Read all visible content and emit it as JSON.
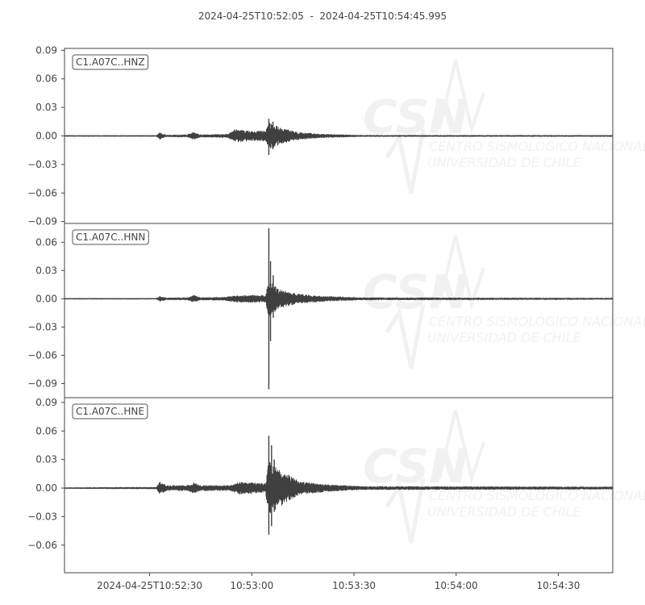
{
  "title": "2024-04-25T10:52:05  -  2024-04-25T10:54:45.995",
  "watermark": {
    "logo": "CSN",
    "line1": "CENTRO SISMOLÓGICO NACIONAL",
    "line2": "UNIVERSIDAD DE CHILE"
  },
  "chart_data": {
    "type": "line",
    "x_range": [
      "2024-04-25T10:52:05",
      "2024-04-25T10:54:45.995"
    ],
    "x_ticks": [
      {
        "time": "10:52:30",
        "label": "2024-04-25T10:52:30"
      },
      {
        "time": "10:53:00",
        "label": "10:53:00"
      },
      {
        "time": "10:53:30",
        "label": "10:53:30"
      },
      {
        "time": "10:54:00",
        "label": "10:54:00"
      },
      {
        "time": "10:54:30",
        "label": "10:54:30"
      }
    ],
    "color": "#404040",
    "panels": [
      {
        "name": "C1.A07C..HNZ",
        "ylim": [
          -0.092,
          0.092
        ],
        "y_ticks": [
          "0.09",
          "0.06",
          "0.03",
          "0.00",
          "−0.03",
          "−0.06",
          "−0.09"
        ],
        "y_tick_values": [
          0.09,
          0.06,
          0.03,
          0,
          -0.03,
          -0.06,
          -0.09
        ],
        "envelope": [
          [
            "10:52:05",
            0.0008
          ],
          [
            "10:52:32",
            0.0008
          ],
          [
            "10:52:33",
            0.004
          ],
          [
            "10:52:35",
            0.0012
          ],
          [
            "10:52:41",
            0.0015
          ],
          [
            "10:52:43",
            0.004
          ],
          [
            "10:52:45",
            0.0015
          ],
          [
            "10:52:53",
            0.002
          ],
          [
            "10:52:55",
            0.007
          ],
          [
            "10:53:00",
            0.005
          ],
          [
            "10:53:04",
            0.006
          ],
          [
            "10:53:05",
            0.014
          ],
          [
            "10:53:09",
            0.008
          ],
          [
            "10:53:14",
            0.004
          ],
          [
            "10:53:21",
            0.002
          ],
          [
            "10:53:32",
            0.001
          ],
          [
            "10:54:46",
            0.0009
          ]
        ],
        "peaks": [
          [
            "10:53:05.0",
            0.018,
            -0.02
          ],
          [
            "10:53:06.2",
            0.015,
            -0.014
          ]
        ]
      },
      {
        "name": "C1.A07C..HNN",
        "ylim": [
          -0.105,
          0.08
        ],
        "y_ticks": [
          "0.06",
          "0.03",
          "0.00",
          "−0.03",
          "−0.06",
          "−0.09"
        ],
        "y_tick_values": [
          0.06,
          0.03,
          0,
          -0.03,
          -0.06,
          -0.09
        ],
        "envelope": [
          [
            "10:52:05",
            0.0008
          ],
          [
            "10:52:32",
            0.0008
          ],
          [
            "10:52:33",
            0.003
          ],
          [
            "10:52:35",
            0.0012
          ],
          [
            "10:52:41",
            0.0015
          ],
          [
            "10:52:43",
            0.004
          ],
          [
            "10:52:45",
            0.0015
          ],
          [
            "10:52:52",
            0.002
          ],
          [
            "10:52:56",
            0.004
          ],
          [
            "10:53:04",
            0.004
          ],
          [
            "10:53:05",
            0.02
          ],
          [
            "10:53:08",
            0.01
          ],
          [
            "10:53:14",
            0.005
          ],
          [
            "10:53:21",
            0.003
          ],
          [
            "10:53:32",
            0.0015
          ],
          [
            "10:54:46",
            0.001
          ]
        ],
        "peaks": [
          [
            "10:53:05.0",
            0.075,
            -0.096
          ],
          [
            "10:53:05.5",
            0.04,
            -0.045
          ],
          [
            "10:53:06.3",
            0.025,
            -0.02
          ]
        ]
      },
      {
        "name": "C1.A07C..HNE",
        "ylim": [
          -0.089,
          0.095
        ],
        "y_ticks": [
          "0.09",
          "0.06",
          "0.03",
          "0.00",
          "−0.03",
          "−0.06"
        ],
        "y_tick_values": [
          0.09,
          0.06,
          0.03,
          0,
          -0.03,
          -0.06
        ],
        "envelope": [
          [
            "10:52:05",
            0.0008
          ],
          [
            "10:52:32",
            0.0012
          ],
          [
            "10:52:33",
            0.007
          ],
          [
            "10:52:35",
            0.003
          ],
          [
            "10:52:41",
            0.003
          ],
          [
            "10:52:43",
            0.006
          ],
          [
            "10:52:45",
            0.003
          ],
          [
            "10:52:54",
            0.003
          ],
          [
            "10:52:56",
            0.007
          ],
          [
            "10:53:04",
            0.005
          ],
          [
            "10:53:05",
            0.03
          ],
          [
            "10:53:08",
            0.02
          ],
          [
            "10:53:14",
            0.007
          ],
          [
            "10:53:22",
            0.004
          ],
          [
            "10:53:32",
            0.002
          ],
          [
            "10:54:46",
            0.0015
          ]
        ],
        "peaks": [
          [
            "10:53:05.0",
            0.055,
            -0.049
          ],
          [
            "10:53:05.8",
            0.045,
            -0.04
          ],
          [
            "10:53:06.6",
            0.03,
            -0.025
          ]
        ]
      }
    ]
  }
}
